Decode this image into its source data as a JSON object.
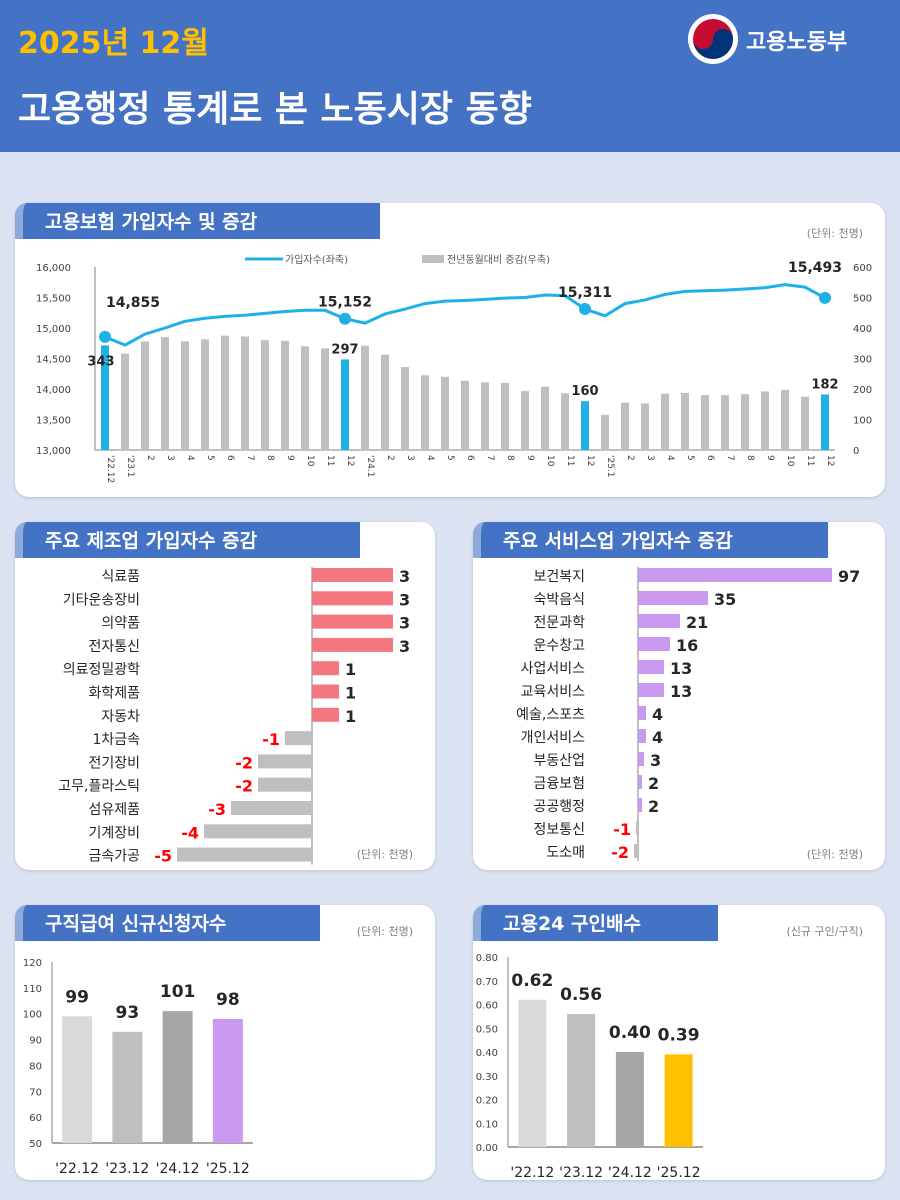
{
  "header": {
    "date": "2025년 12월",
    "title": "고용행정 통계로 본 노동시장 동향",
    "ministry": "고용노동부"
  },
  "colors": {
    "header": "#4472c4",
    "date": "#ffc000",
    "line": "#1fb0e8",
    "bar": "#bfbfbf",
    "manuf_pos": "#f4777f",
    "service_pos": "#c99af0",
    "negative": "#bfbfbf",
    "neg_label": "#ff0000"
  },
  "insurance": {
    "title": "고용보험 가입자수 및 증감",
    "unit": "(단위: 천명)",
    "chart_data": {
      "type": "bar+line",
      "legend_position": "top",
      "series": [
        {
          "name": "가입자수(좌축)",
          "axis": "left",
          "type": "line",
          "values": [
            14855,
            14720,
            14900,
            15000,
            15110,
            15160,
            15190,
            15210,
            15240,
            15270,
            15290,
            15290,
            15152,
            15080,
            15230,
            15310,
            15400,
            15440,
            15450,
            15470,
            15490,
            15500,
            15540,
            15530,
            15311,
            15200,
            15400,
            15460,
            15550,
            15600,
            15610,
            15620,
            15640,
            15660,
            15710,
            15670,
            15493
          ]
        },
        {
          "name": "전년동월대비 증감(우축)",
          "axis": "right",
          "type": "bar",
          "values": [
            343,
            316,
            356,
            370,
            356,
            363,
            375,
            372,
            360,
            358,
            340,
            333,
            297,
            342,
            313,
            272,
            245,
            240,
            227,
            222,
            220,
            193,
            208,
            186,
            160,
            115,
            155,
            153,
            185,
            187,
            180,
            180,
            183,
            192,
            197,
            175,
            182
          ]
        }
      ],
      "categories": [
        "'22.12",
        "'23.1",
        "2",
        "3",
        "4",
        "5",
        "6",
        "7",
        "8",
        "9",
        "10",
        "11",
        "12",
        "'24.1",
        "2",
        "3",
        "4",
        "5",
        "6",
        "7",
        "8",
        "9",
        "10",
        "11",
        "12",
        "'25.1",
        "2",
        "3",
        "4",
        "5",
        "6",
        "7",
        "8",
        "9",
        "10",
        "11",
        "12"
      ],
      "highlight_indices": [
        0,
        12,
        24,
        36
      ],
      "line_labels": [
        {
          "index": 0,
          "text": "14,855"
        },
        {
          "index": 12,
          "text": "15,152"
        },
        {
          "index": 24,
          "text": "15,311"
        },
        {
          "index": 36,
          "text": "15,493"
        }
      ],
      "bar_labels": [
        {
          "index": 0,
          "text": "343"
        },
        {
          "index": 12,
          "text": "297"
        },
        {
          "index": 24,
          "text": "160"
        },
        {
          "index": 36,
          "text": "182"
        }
      ],
      "left_ticks": [
        "13,000",
        "13,500",
        "14,000",
        "14,500",
        "15,000",
        "15,500",
        "16,000"
      ],
      "right_ticks": [
        "0",
        "100",
        "200",
        "300",
        "400",
        "500",
        "600"
      ],
      "ylim_left": [
        13000,
        16000
      ],
      "ylim_right": [
        0,
        600
      ]
    }
  },
  "manufacturing": {
    "title": "주요 제조업 가입자수 증감",
    "unit": "(단위: 천명)",
    "chart_data": {
      "type": "bar",
      "orientation": "horizontal",
      "categories": [
        "식료품",
        "기타운송장비",
        "의약품",
        "전자통신",
        "의료정밀광학",
        "화학제품",
        "자동차",
        "1차금속",
        "전기장비",
        "고무,플라스틱",
        "섬유제품",
        "기계장비",
        "금속가공"
      ],
      "values": [
        3,
        3,
        3,
        3,
        1,
        1,
        1,
        -1,
        -2,
        -2,
        -3,
        -4,
        -5
      ]
    }
  },
  "services": {
    "title": "주요 서비스업 가입자수 증감",
    "unit": "(단위: 천명)",
    "chart_data": {
      "type": "bar",
      "orientation": "horizontal",
      "categories": [
        "보건복지",
        "숙박음식",
        "전문과학",
        "운수창고",
        "사업서비스",
        "교육서비스",
        "예술,스포츠",
        "개인서비스",
        "부동산업",
        "금융보험",
        "공공행정",
        "정보통신",
        "도소매"
      ],
      "values": [
        97,
        35,
        21,
        16,
        13,
        13,
        4,
        4,
        3,
        2,
        2,
        -1,
        -2
      ]
    }
  },
  "jobseekers": {
    "title": "구직급여 신규신청자수",
    "unit": "(단위: 천명)",
    "chart_data": {
      "type": "bar",
      "categories": [
        "'22.12",
        "'23.12",
        "'24.12",
        "'25.12"
      ],
      "values": [
        99,
        93,
        101,
        98
      ],
      "labels": [
        "99",
        "93",
        "101",
        "98"
      ],
      "ylim": [
        50,
        120
      ],
      "ticks": [
        "50",
        "60",
        "70",
        "80",
        "90",
        "100",
        "110",
        "120"
      ],
      "colors": [
        "#d9d9d9",
        "#bfbfbf",
        "#a6a6a6",
        "#c99af0"
      ]
    }
  },
  "ratio": {
    "title": "고용24 구인배수",
    "unit": "(신규 구인/구직)",
    "chart_data": {
      "type": "bar",
      "categories": [
        "'22.12",
        "'23.12",
        "'24.12",
        "'25.12"
      ],
      "values": [
        0.62,
        0.56,
        0.4,
        0.39
      ],
      "labels": [
        "0.62",
        "0.56",
        "0.40",
        "0.39"
      ],
      "ylim": [
        0,
        0.8
      ],
      "ticks": [
        "0.00",
        "0.10",
        "0.20",
        "0.30",
        "0.40",
        "0.50",
        "0.60",
        "0.70",
        "0.80"
      ],
      "colors": [
        "#d9d9d9",
        "#bfbfbf",
        "#a6a6a6",
        "#ffc000"
      ]
    }
  }
}
